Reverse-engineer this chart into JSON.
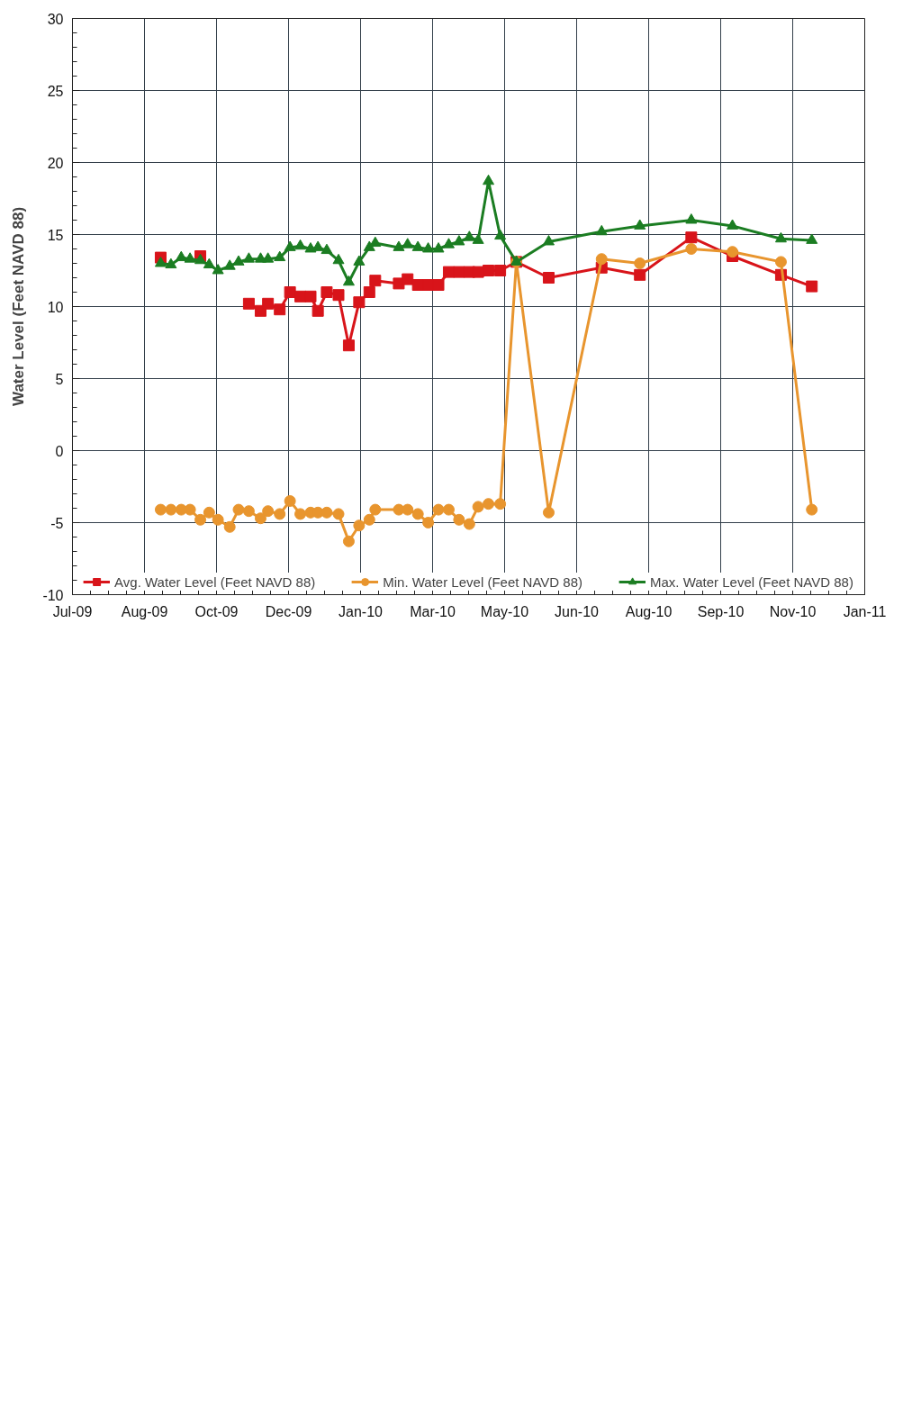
{
  "chart_data": {
    "type": "line",
    "ylabel": "Water Level (Feet NAVD 88)",
    "x": [
      "2009-09-10",
      "2009-09-17",
      "2009-09-24",
      "2009-09-30",
      "2009-10-07",
      "2009-10-13",
      "2009-10-19",
      "2009-10-27",
      "2009-11-02",
      "2009-11-09",
      "2009-11-17",
      "2009-11-22",
      "2009-11-30",
      "2009-12-07",
      "2009-12-14",
      "2009-12-21",
      "2009-12-26",
      "2010-01-01",
      "2010-01-09",
      "2010-01-16",
      "2010-01-23",
      "2010-01-30",
      "2010-02-03",
      "2010-02-19",
      "2010-02-25",
      "2010-03-04",
      "2010-03-11",
      "2010-03-18",
      "2010-03-25",
      "2010-04-01",
      "2010-04-08",
      "2010-04-14",
      "2010-04-21",
      "2010-04-29",
      "2010-05-10",
      "2010-06-01",
      "2010-07-07",
      "2010-08-02",
      "2010-09-06",
      "2010-10-04",
      "2010-11-06",
      "2010-11-27"
    ],
    "series": [
      {
        "name": "Avg. Water Level (Feet NAVD 88)",
        "color": "#d8141a",
        "marker": "square",
        "values": [
          13.4,
          null,
          null,
          null,
          13.5,
          null,
          null,
          null,
          null,
          10.2,
          9.7,
          10.2,
          9.8,
          11.0,
          10.7,
          10.7,
          9.7,
          11.0,
          10.8,
          7.3,
          10.3,
          11.0,
          11.8,
          11.6,
          11.9,
          11.5,
          11.5,
          11.5,
          12.4,
          12.4,
          12.4,
          12.4,
          12.5,
          12.5,
          13.1,
          12.0,
          12.7,
          12.2,
          14.8,
          13.5,
          12.2,
          11.4
        ]
      },
      {
        "name": "Min. Water Level (Feet NAVD 88)",
        "color": "#e8952e",
        "marker": "circle",
        "values": [
          -4.1,
          -4.1,
          -4.1,
          -4.1,
          -4.8,
          -4.3,
          -4.8,
          -5.3,
          -4.1,
          -4.2,
          -4.7,
          -4.2,
          -4.4,
          -3.5,
          -4.4,
          -4.3,
          -4.3,
          -4.3,
          -4.4,
          -6.3,
          -5.2,
          -4.8,
          -4.1,
          -4.1,
          -4.1,
          -4.4,
          -5.0,
          -4.1,
          -4.1,
          -4.8,
          -5.1,
          -3.9,
          -3.7,
          -3.7,
          13.1,
          -4.3,
          13.3,
          13.0,
          14.0,
          13.8,
          13.1,
          -4.1
        ]
      },
      {
        "name": "Max. Water Level (Feet NAVD 88)",
        "color": "#1b7d22",
        "marker": "triangle",
        "values": [
          13.0,
          12.9,
          13.4,
          13.3,
          13.2,
          12.9,
          12.5,
          12.8,
          13.1,
          13.3,
          13.3,
          13.3,
          13.4,
          14.1,
          14.2,
          14.0,
          14.1,
          13.9,
          13.2,
          11.7,
          13.1,
          14.1,
          14.4,
          14.1,
          14.3,
          14.1,
          14.0,
          14.0,
          14.3,
          14.5,
          14.8,
          14.6,
          18.7,
          14.9,
          13.1,
          14.5,
          15.2,
          15.6,
          16.0,
          15.6,
          14.7,
          14.6
        ]
      }
    ],
    "xlim": [
      "2009-07-12",
      "2011-01-02"
    ],
    "xticks": [
      {
        "value": "2009-07-12",
        "label": "Jul-09"
      },
      {
        "value": "2009-08-30",
        "label": "Aug-09"
      },
      {
        "value": "2009-10-18",
        "label": "Oct-09"
      },
      {
        "value": "2009-12-06",
        "label": "Dec-09"
      },
      {
        "value": "2010-01-24",
        "label": "Jan-10"
      },
      {
        "value": "2010-03-14",
        "label": "Mar-10"
      },
      {
        "value": "2010-05-02",
        "label": "May-10"
      },
      {
        "value": "2010-06-20",
        "label": "Jun-10"
      },
      {
        "value": "2010-08-08",
        "label": "Aug-10"
      },
      {
        "value": "2010-09-26",
        "label": "Sep-10"
      },
      {
        "value": "2010-11-14",
        "label": "Nov-10"
      },
      {
        "value": "2011-01-02",
        "label": "Jan-11"
      }
    ],
    "ylim": [
      -10,
      30
    ],
    "yticks": [
      -10,
      -5,
      0,
      5,
      10,
      15,
      20,
      25,
      30
    ],
    "grid": true,
    "legend": "bottom",
    "line_style": "solid"
  }
}
